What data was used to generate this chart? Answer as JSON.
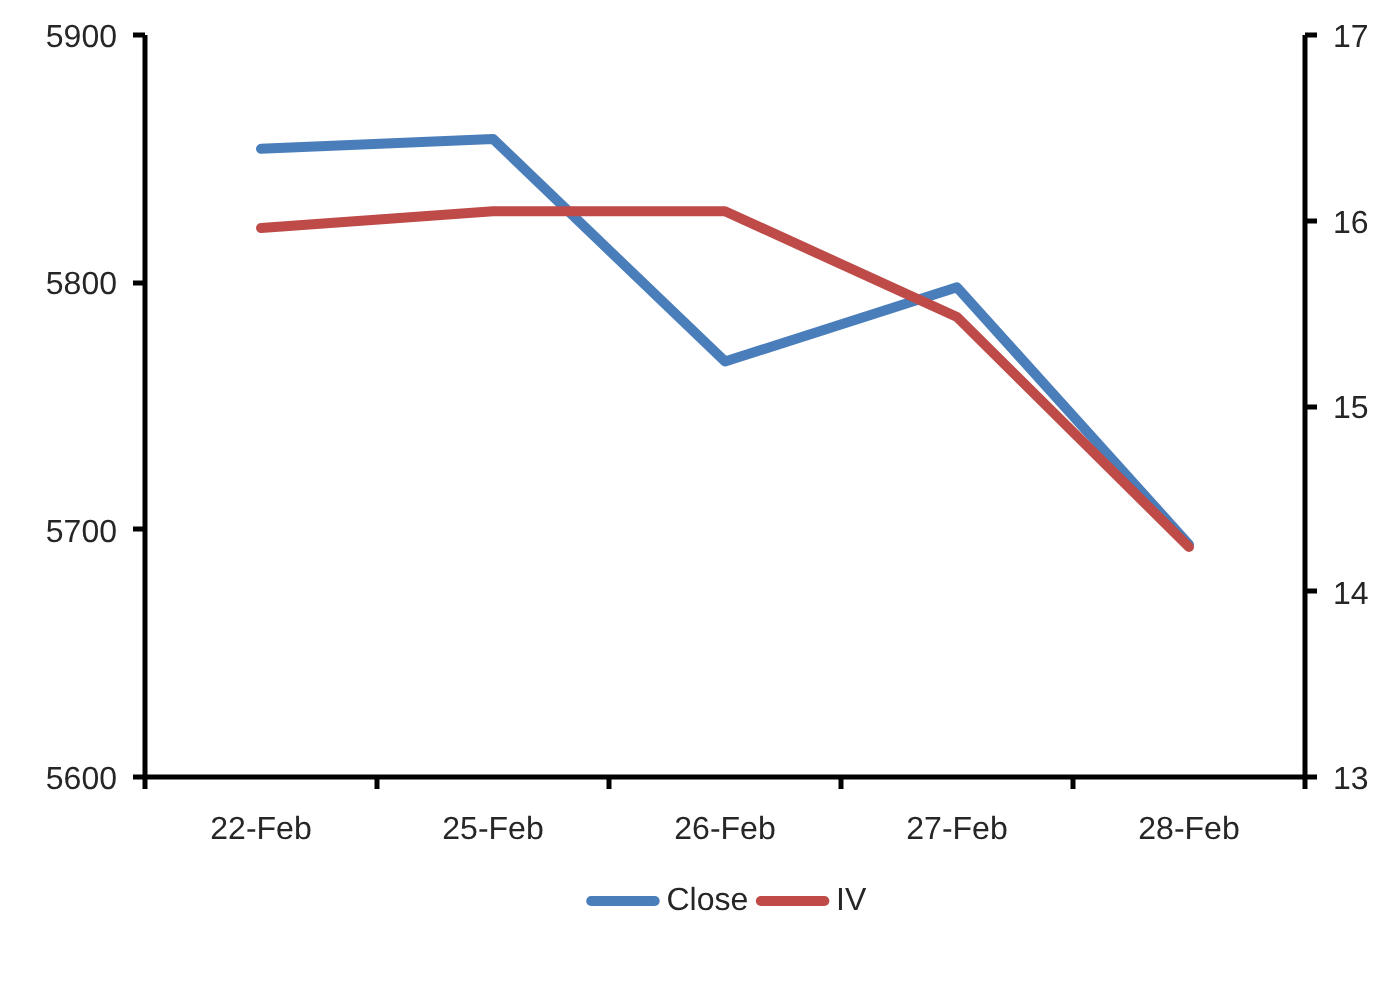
{
  "chart_data": {
    "type": "line",
    "categories": [
      "22-Feb",
      "25-Feb",
      "26-Feb",
      "27-Feb",
      "28-Feb"
    ],
    "series": [
      {
        "name": "Close",
        "color": "#4a7ebb",
        "values": [
          5854,
          5858,
          5768,
          5798,
          5694
        ]
      },
      {
        "name": "IV",
        "color": "#be4b48",
        "axis": "y2",
        "values": [
          15.96,
          16.05,
          16.05,
          15.48,
          14.24
        ]
      }
    ],
    "ylim": [
      5600,
      5900
    ],
    "yticks": [
      5600,
      5700,
      5800,
      5900
    ],
    "y2lim": [
      13,
      17
    ],
    "y2ticks": [
      13,
      14,
      15,
      16,
      17
    ],
    "legend": "bottom",
    "grid": false,
    "line_style": "solid"
  }
}
